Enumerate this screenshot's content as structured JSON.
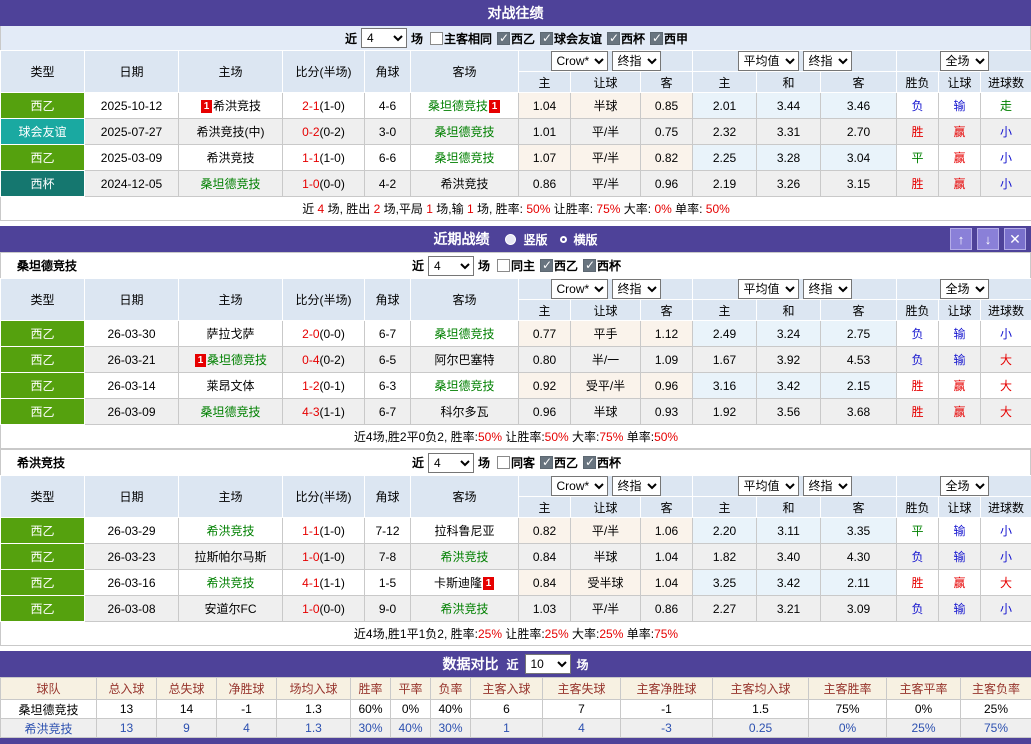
{
  "colors": {
    "purple": "#4E4299",
    "league_liga2": "#55A10E",
    "league_friendly": "#1AA9A1",
    "league_cup": "#15776F",
    "red": "#E60000",
    "blue": "#1515CF",
    "green": "#008000",
    "compare_header_text": "#97342C"
  },
  "shared": {
    "main_columns": [
      "类型",
      "日期",
      "主场",
      "比分(半场)",
      "角球",
      "客场"
    ],
    "sub_columns": [
      "主",
      "让球",
      "客",
      "主",
      "和",
      "客",
      "胜负",
      "让球",
      "进球数"
    ],
    "dropdowns": {
      "odds": [
        "Crow*",
        "终指"
      ],
      "avg": [
        "平均值",
        "终指"
      ],
      "result": [
        "全场"
      ]
    },
    "near_label": "近",
    "games_label": "场"
  },
  "h2h": {
    "title": "对战往绩",
    "filter": {
      "count": "4",
      "same": {
        "label": "主客相同",
        "checked": false
      },
      "leagues": [
        {
          "label": "西乙",
          "checked": true
        },
        {
          "label": "球会友谊",
          "checked": true
        },
        {
          "label": "西杯",
          "checked": true
        },
        {
          "label": "西甲",
          "checked": true
        }
      ]
    },
    "rows": [
      {
        "league": "西乙",
        "league_color": "#55A10E",
        "date": "2025-10-12",
        "home": {
          "name": "希洪竞技",
          "green": false,
          "badge_before": "1"
        },
        "score": "2-1",
        "half": "(1-0)",
        "corners": "4-6",
        "away": {
          "name": "桑坦德竞技",
          "green": true,
          "badge_after": "1"
        },
        "odds": [
          "1.04",
          "半球",
          "0.85"
        ],
        "avg": [
          "2.01",
          "3.44",
          "3.46"
        ],
        "outcome": [
          [
            "负",
            "b"
          ],
          [
            "输",
            "b"
          ],
          [
            "走",
            "g"
          ]
        ]
      },
      {
        "league": "球会友谊",
        "league_color": "#1AA9A1",
        "date": "2025-07-27",
        "home": {
          "name": "希洪竞技(中)",
          "green": false
        },
        "score": "0-2",
        "half": "(0-2)",
        "corners": "3-0",
        "away": {
          "name": "桑坦德竞技",
          "green": true
        },
        "odds": [
          "1.01",
          "平/半",
          "0.75"
        ],
        "avg": [
          "2.32",
          "3.31",
          "2.70"
        ],
        "outcome": [
          [
            "胜",
            "r"
          ],
          [
            "赢",
            "r"
          ],
          [
            "小",
            "b"
          ]
        ]
      },
      {
        "league": "西乙",
        "league_color": "#55A10E",
        "date": "2025-03-09",
        "home": {
          "name": "希洪竞技",
          "green": false
        },
        "score": "1-1",
        "half": "(1-0)",
        "corners": "6-6",
        "away": {
          "name": "桑坦德竞技",
          "green": true
        },
        "odds": [
          "1.07",
          "平/半",
          "0.82"
        ],
        "avg": [
          "2.25",
          "3.28",
          "3.04"
        ],
        "outcome": [
          [
            "平",
            "g"
          ],
          [
            "赢",
            "r"
          ],
          [
            "小",
            "b"
          ]
        ]
      },
      {
        "league": "西杯",
        "league_color": "#15776F",
        "date": "2024-12-05",
        "home": {
          "name": "桑坦德竞技",
          "green": true
        },
        "score": "1-0",
        "half": "(0-0)",
        "corners": "4-2",
        "away": {
          "name": "希洪竞技",
          "green": false
        },
        "odds": [
          "0.86",
          "平/半",
          "0.96"
        ],
        "avg": [
          "2.19",
          "3.26",
          "3.15"
        ],
        "outcome": [
          [
            "胜",
            "r"
          ],
          [
            "赢",
            "r"
          ],
          [
            "小",
            "b"
          ]
        ]
      }
    ],
    "summary": [
      [
        "近 ",
        "k"
      ],
      [
        "4",
        "r"
      ],
      [
        " 场, 胜出 ",
        "k"
      ],
      [
        "2",
        "r"
      ],
      [
        " 场,平局 ",
        "k"
      ],
      [
        "1",
        "r"
      ],
      [
        " 场,输 ",
        "k"
      ],
      [
        "1",
        "r"
      ],
      [
        " 场, 胜率: ",
        "k"
      ],
      [
        "50%",
        "r"
      ],
      [
        " 让胜率: ",
        "k"
      ],
      [
        "75%",
        "r"
      ],
      [
        " 大率: ",
        "k"
      ],
      [
        "0%",
        "r"
      ],
      [
        " 单率: ",
        "k"
      ],
      [
        "50%",
        "r"
      ]
    ]
  },
  "recent": {
    "title": "近期战绩",
    "view_options": [
      {
        "label": "竖版",
        "selected": true
      },
      {
        "label": "横版",
        "selected": false
      }
    ],
    "window_controls": [
      {
        "id": "up",
        "glyph": "↑"
      },
      {
        "id": "down",
        "glyph": "↓"
      },
      {
        "id": "close",
        "glyph": "✕"
      }
    ],
    "teams": [
      {
        "name": "桑坦德竞技",
        "filter": {
          "count": "4",
          "same": {
            "label": "同主",
            "checked": false
          },
          "leagues": [
            {
              "label": "西乙",
              "checked": true
            },
            {
              "label": "西杯",
              "checked": true
            }
          ]
        },
        "rows": [
          {
            "league": "西乙",
            "league_color": "#55A10E",
            "date": "26-03-30",
            "home": {
              "name": "萨拉戈萨",
              "green": false
            },
            "score": "2-0",
            "half": "(0-0)",
            "corners": "6-7",
            "away": {
              "name": "桑坦德竞技",
              "green": true
            },
            "odds": [
              "0.77",
              "平手",
              "1.12"
            ],
            "avg": [
              "2.49",
              "3.24",
              "2.75"
            ],
            "outcome": [
              [
                "负",
                "b"
              ],
              [
                "输",
                "b"
              ],
              [
                "小",
                "b"
              ]
            ]
          },
          {
            "league": "西乙",
            "league_color": "#55A10E",
            "date": "26-03-21",
            "home": {
              "name": "桑坦德竞技",
              "green": true,
              "badge_before": "1"
            },
            "score": "0-4",
            "half": "(0-2)",
            "corners": "6-5",
            "away": {
              "name": "阿尔巴塞特",
              "green": false
            },
            "odds": [
              "0.80",
              "半/一",
              "1.09"
            ],
            "avg": [
              "1.67",
              "3.92",
              "4.53"
            ],
            "outcome": [
              [
                "负",
                "b"
              ],
              [
                "输",
                "b"
              ],
              [
                "大",
                "r"
              ]
            ]
          },
          {
            "league": "西乙",
            "league_color": "#55A10E",
            "date": "26-03-14",
            "home": {
              "name": "莱昂文体",
              "green": false
            },
            "score": "1-2",
            "half": "(0-1)",
            "corners": "6-3",
            "away": {
              "name": "桑坦德竞技",
              "green": true
            },
            "odds": [
              "0.92",
              "受平/半",
              "0.96"
            ],
            "avg": [
              "3.16",
              "3.42",
              "2.15"
            ],
            "outcome": [
              [
                "胜",
                "r"
              ],
              [
                "赢",
                "r"
              ],
              [
                "大",
                "r"
              ]
            ]
          },
          {
            "league": "西乙",
            "league_color": "#55A10E",
            "date": "26-03-09",
            "home": {
              "name": "桑坦德竞技",
              "green": true
            },
            "score": "4-3",
            "half": "(1-1)",
            "corners": "6-7",
            "away": {
              "name": "科尔多瓦",
              "green": false
            },
            "odds": [
              "0.96",
              "半球",
              "0.93"
            ],
            "avg": [
              "1.92",
              "3.56",
              "3.68"
            ],
            "outcome": [
              [
                "胜",
                "r"
              ],
              [
                "赢",
                "r"
              ],
              [
                "大",
                "r"
              ]
            ]
          }
        ],
        "summary": [
          [
            "近4场,胜2平0负2, 胜率:",
            "k"
          ],
          [
            "50%",
            "r"
          ],
          [
            " 让胜率:",
            "k"
          ],
          [
            "50%",
            "r"
          ],
          [
            " 大率:",
            "k"
          ],
          [
            "75%",
            "r"
          ],
          [
            " 单率:",
            "k"
          ],
          [
            "50%",
            "r"
          ]
        ]
      },
      {
        "name": "希洪竞技",
        "filter": {
          "count": "4",
          "same": {
            "label": "同客",
            "checked": false
          },
          "leagues": [
            {
              "label": "西乙",
              "checked": true
            },
            {
              "label": "西杯",
              "checked": true
            }
          ]
        },
        "rows": [
          {
            "league": "西乙",
            "league_color": "#55A10E",
            "date": "26-03-29",
            "home": {
              "name": "希洪竞技",
              "green": true
            },
            "score": "1-1",
            "half": "(1-0)",
            "corners": "7-12",
            "away": {
              "name": "拉科鲁尼亚",
              "green": false
            },
            "odds": [
              "0.82",
              "平/半",
              "1.06"
            ],
            "avg": [
              "2.20",
              "3.11",
              "3.35"
            ],
            "outcome": [
              [
                "平",
                "g"
              ],
              [
                "输",
                "b"
              ],
              [
                "小",
                "b"
              ]
            ]
          },
          {
            "league": "西乙",
            "league_color": "#55A10E",
            "date": "26-03-23",
            "home": {
              "name": "拉斯帕尔马斯",
              "green": false
            },
            "score": "1-0",
            "half": "(1-0)",
            "corners": "7-8",
            "away": {
              "name": "希洪竞技",
              "green": true
            },
            "odds": [
              "0.84",
              "半球",
              "1.04"
            ],
            "avg": [
              "1.82",
              "3.40",
              "4.30"
            ],
            "outcome": [
              [
                "负",
                "b"
              ],
              [
                "输",
                "b"
              ],
              [
                "小",
                "b"
              ]
            ]
          },
          {
            "league": "西乙",
            "league_color": "#55A10E",
            "date": "26-03-16",
            "home": {
              "name": "希洪竞技",
              "green": true
            },
            "score": "4-1",
            "half": "(1-1)",
            "corners": "1-5",
            "away": {
              "name": "卡斯迪隆",
              "green": false,
              "badge_after": "1"
            },
            "odds": [
              "0.84",
              "受半球",
              "1.04"
            ],
            "avg": [
              "3.25",
              "3.42",
              "2.11"
            ],
            "outcome": [
              [
                "胜",
                "r"
              ],
              [
                "赢",
                "r"
              ],
              [
                "大",
                "r"
              ]
            ]
          },
          {
            "league": "西乙",
            "league_color": "#55A10E",
            "date": "26-03-08",
            "home": {
              "name": "安道尔FC",
              "green": false
            },
            "score": "1-0",
            "half": "(0-0)",
            "corners": "9-0",
            "away": {
              "name": "希洪竞技",
              "green": true
            },
            "odds": [
              "1.03",
              "平/半",
              "0.86"
            ],
            "avg": [
              "2.27",
              "3.21",
              "3.09"
            ],
            "outcome": [
              [
                "负",
                "b"
              ],
              [
                "输",
                "b"
              ],
              [
                "小",
                "b"
              ]
            ]
          }
        ],
        "summary": [
          [
            "近4场,胜1平1负2, 胜率:",
            "k"
          ],
          [
            "25%",
            "r"
          ],
          [
            " 让胜率:",
            "k"
          ],
          [
            "25%",
            "r"
          ],
          [
            " 大率:",
            "k"
          ],
          [
            "25%",
            "r"
          ],
          [
            " 单率:",
            "k"
          ],
          [
            "75%",
            "r"
          ]
        ]
      }
    ]
  },
  "compare": {
    "title": "数据对比",
    "count": "10",
    "headers": [
      "球队",
      "总入球",
      "总失球",
      "净胜球",
      "场均入球",
      "胜率",
      "平率",
      "负率",
      "主客入球",
      "主客失球",
      "主客净胜球",
      "主客均入球",
      "主客胜率",
      "主客平率",
      "主客负率"
    ],
    "rows": [
      {
        "team": "桑坦德竞技",
        "blue": false,
        "values": [
          "13",
          "14",
          "-1",
          "1.3",
          "60%",
          "0%",
          "40%",
          "6",
          "7",
          "-1",
          "1.5",
          "75%",
          "0%",
          "25%"
        ]
      },
      {
        "team": "希洪竞技",
        "blue": true,
        "values": [
          "13",
          "9",
          "4",
          "1.3",
          "30%",
          "40%",
          "30%",
          "1",
          "4",
          "-3",
          "0.25",
          "0%",
          "25%",
          "75%"
        ]
      }
    ]
  }
}
